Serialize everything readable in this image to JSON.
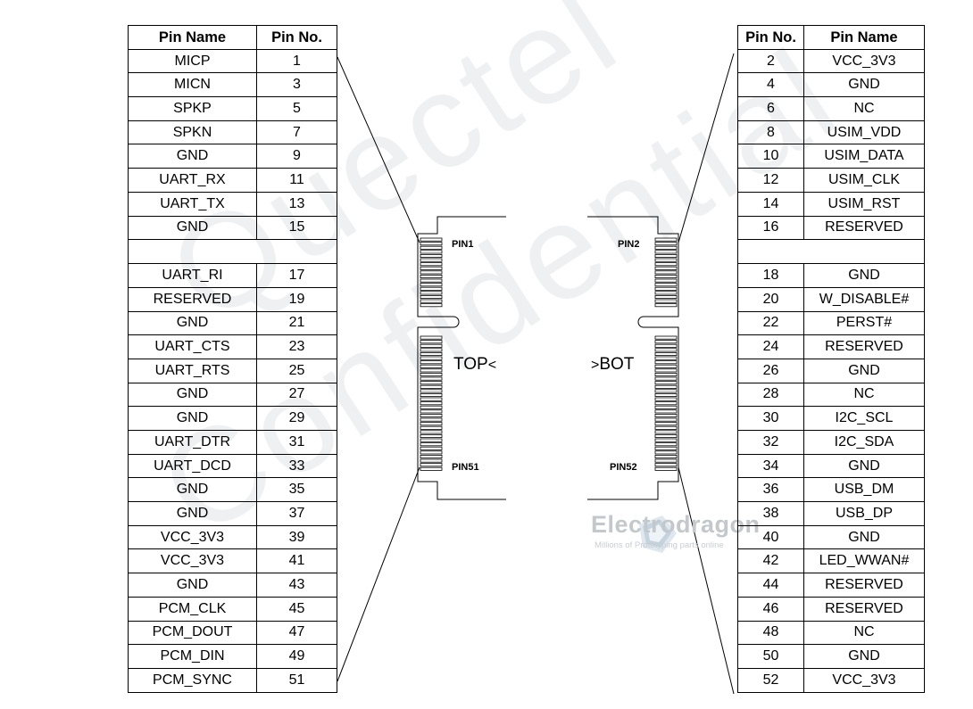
{
  "watermark": {
    "line1": "Quectel",
    "line2": "Confidential"
  },
  "left_table": {
    "headers": [
      "Pin Name",
      "Pin No."
    ],
    "rows_top": [
      [
        "MICP",
        "1"
      ],
      [
        "MICN",
        "3"
      ],
      [
        "SPKP",
        "5"
      ],
      [
        "SPKN",
        "7"
      ],
      [
        "GND",
        "9"
      ],
      [
        "UART_RX",
        "11"
      ],
      [
        "UART_TX",
        "13"
      ],
      [
        "GND",
        "15"
      ]
    ],
    "rows_bottom": [
      [
        "UART_RI",
        "17"
      ],
      [
        "RESERVED",
        "19"
      ],
      [
        "GND",
        "21"
      ],
      [
        "UART_CTS",
        "23"
      ],
      [
        "UART_RTS",
        "25"
      ],
      [
        "GND",
        "27"
      ],
      [
        "GND",
        "29"
      ],
      [
        "UART_DTR",
        "31"
      ],
      [
        "UART_DCD",
        "33"
      ],
      [
        "GND",
        "35"
      ],
      [
        "GND",
        "37"
      ],
      [
        "VCC_3V3",
        "39"
      ],
      [
        "VCC_3V3",
        "41"
      ],
      [
        "GND",
        "43"
      ],
      [
        "PCM_CLK",
        "45"
      ],
      [
        "PCM_DOUT",
        "47"
      ],
      [
        "PCM_DIN",
        "49"
      ],
      [
        "PCM_SYNC",
        "51"
      ]
    ]
  },
  "right_table": {
    "headers": [
      "Pin No.",
      "Pin Name"
    ],
    "rows_top": [
      [
        "2",
        "VCC_3V3"
      ],
      [
        "4",
        "GND"
      ],
      [
        "6",
        "NC"
      ],
      [
        "8",
        "USIM_VDD"
      ],
      [
        "10",
        "USIM_DATA"
      ],
      [
        "12",
        "USIM_CLK"
      ],
      [
        "14",
        "USIM_RST"
      ],
      [
        "16",
        "RESERVED"
      ]
    ],
    "rows_bottom": [
      [
        "18",
        "GND"
      ],
      [
        "20",
        "W_DISABLE#"
      ],
      [
        "22",
        "PERST#"
      ],
      [
        "24",
        "RESERVED"
      ],
      [
        "26",
        "GND"
      ],
      [
        "28",
        "NC"
      ],
      [
        "30",
        "I2C_SCL"
      ],
      [
        "32",
        "I2C_SDA"
      ],
      [
        "34",
        "GND"
      ],
      [
        "36",
        "USB_DM"
      ],
      [
        "38",
        "USB_DP"
      ],
      [
        "40",
        "GND"
      ],
      [
        "42",
        "LED_WWAN#"
      ],
      [
        "44",
        "RESERVED"
      ],
      [
        "46",
        "RESERVED"
      ],
      [
        "48",
        "NC"
      ],
      [
        "50",
        "GND"
      ],
      [
        "52",
        "VCC_3V3"
      ]
    ]
  },
  "connector": {
    "pin1": "PIN1",
    "pin2": "PIN2",
    "pin51": "PIN51",
    "pin52": "PIN52",
    "top_label": "TOP",
    "bottom_label": "BOT"
  },
  "logo": {
    "name": "Electrodragon",
    "tagline": "Millions of Prototyping parts online"
  },
  "colors": {
    "lines": "#000000",
    "watermark": "#eef0f2",
    "logo": "#c3c8cc"
  }
}
